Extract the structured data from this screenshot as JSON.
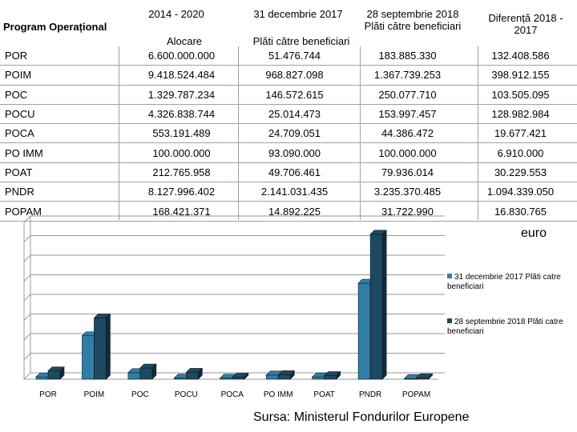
{
  "table": {
    "header": {
      "program": "Program Operațional",
      "col1_top": "2014 - 2020",
      "col1_sub": "Alocare",
      "col2_top": "31 decembrie 2017",
      "col2_sub": "Plăti către beneficiari",
      "col3": "28 septembrie 2018 Plăti către beneficiari",
      "col4": "Diferență 2018 - 2017"
    },
    "rows": [
      {
        "name": "POR",
        "alocare": "6.600.000.000",
        "plati_2017": "51.476.744",
        "plati_2018": "183.885.330",
        "diferenta": "132.408.586"
      },
      {
        "name": "POIM",
        "alocare": "9.418.524.484",
        "plati_2017": "968.827.098",
        "plati_2018": "1.367.739.253",
        "diferenta": "398.912.155"
      },
      {
        "name": "POC",
        "alocare": "1.329.787.234",
        "plati_2017": "146.572.615",
        "plati_2018": "250.077.710",
        "diferenta": "103.505.095"
      },
      {
        "name": "POCU",
        "alocare": "4.326.838.744",
        "plati_2017": "25.014.473",
        "plati_2018": "153.997.457",
        "diferenta": "128.982.984"
      },
      {
        "name": "POCA",
        "alocare": "553.191.489",
        "plati_2017": "24.709.051",
        "plati_2018": "44.386.472",
        "diferenta": "19.677.421"
      },
      {
        "name": "PO IMM",
        "alocare": "100.000.000",
        "plati_2017": "93.090.000",
        "plati_2018": "100.000.000",
        "diferenta": "6.910.000"
      },
      {
        "name": "POAT",
        "alocare": "212.765.958",
        "plati_2017": "49.706.461",
        "plati_2018": "79.936.014",
        "diferenta": "30.229.553"
      },
      {
        "name": "PNDR",
        "alocare": "8.127.996.402",
        "plati_2017": "2.141.031.435",
        "plati_2018": "3.235.370.485",
        "diferenta": "1.094.339.050"
      },
      {
        "name": "POPAM",
        "alocare": "168.421.371",
        "plati_2017": "14.892.225",
        "plati_2018": "31.722.990",
        "diferenta": "16.830.765"
      }
    ]
  },
  "unit_label": "euro",
  "source": "Sursa: Ministerul Fondurilor Europene",
  "colors": {
    "series1": "#2e7fa8",
    "series2": "#1d4a61",
    "grid": "#9a9a9a"
  },
  "chart_data": {
    "type": "bar",
    "categories": [
      "POR",
      "POIM",
      "POC",
      "POCU",
      "POCA",
      "PO IMM",
      "POAT",
      "PNDR",
      "POPAM"
    ],
    "series": [
      {
        "name": "31 decembrie 2017 Plăti catre beneficiari",
        "values": [
          51476744,
          968827098,
          146572615,
          25014473,
          24709051,
          93090000,
          49706461,
          2141031435,
          14892225
        ]
      },
      {
        "name": "28 septembrie 2018 Plăti catre beneficiari",
        "values": [
          183885330,
          1367739253,
          250077710,
          153997457,
          44386472,
          100000000,
          79936014,
          3235370485,
          31722990
        ]
      }
    ],
    "ylim": [
      0,
      3500000000
    ],
    "gridlines": 8,
    "grid": true,
    "legend": "right",
    "title": "",
    "xlabel": "",
    "ylabel": ""
  }
}
